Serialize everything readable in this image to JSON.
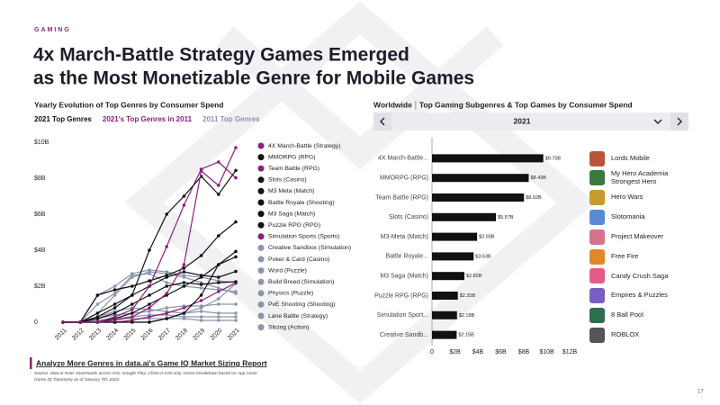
{
  "section": "GAMING",
  "title": [
    "4x March-Battle Strategy Games Emerged",
    "as the Most Monetizable Genre for Mobile Games"
  ],
  "chart_data": [
    {
      "type": "line",
      "title": "Yearly Evolution of Top Genres by Consumer Spend",
      "legend_groups": [
        {
          "name": "2021 Top Genres",
          "color": "#111111"
        },
        {
          "name": "2021's Top Genres in 2011",
          "color": "#8e1f7e"
        },
        {
          "name": "2011 Top Genres",
          "color": "#8c95ad"
        }
      ],
      "categories": [
        "2011",
        "2012",
        "2013",
        "2014",
        "2015",
        "2016",
        "2017",
        "2018",
        "2019",
        "2020",
        "2021"
      ],
      "ylim": [
        0,
        10
      ],
      "yticks": [
        0,
        {
          "value": 2,
          "label": "$2B"
        },
        {
          "value": 4,
          "label": "$4B"
        },
        {
          "value": 6,
          "label": "$6B"
        },
        {
          "value": 8,
          "label": "$8B"
        },
        {
          "value": 10,
          "label": "$10B"
        }
      ],
      "grid": false,
      "series": [
        {
          "name": "4X March-Battle (Strategy)",
          "color": "#8e1f7e",
          "values": [
            0,
            0,
            0,
            0.1,
            0.3,
            0.8,
            1.6,
            3.2,
            8.4,
            7.6,
            9.7
          ]
        },
        {
          "name": "MMORPG (RPG)",
          "color": "#111111",
          "values": [
            0,
            0,
            0.5,
            1,
            1.5,
            4,
            6,
            7,
            8.1,
            7.1,
            8.43
          ]
        },
        {
          "name": "Team Battle (RPG)",
          "color": "#8e1f7e",
          "values": [
            0,
            0,
            0,
            0.3,
            0.7,
            2,
            4.2,
            6.5,
            8.5,
            8.9,
            8.02
          ]
        },
        {
          "name": "Slots (Casino)",
          "color": "#111111",
          "values": [
            0,
            0,
            1.5,
            1.8,
            2,
            2.3,
            2.6,
            3,
            3.7,
            4.8,
            5.57
          ]
        },
        {
          "name": "M3 Meta (Match)",
          "color": "#111111",
          "values": [
            0,
            0,
            0,
            0.2,
            0.5,
            1,
            1.5,
            2,
            2.5,
            3.2,
            3.93
          ]
        },
        {
          "name": "Battle Royale (Shooting)",
          "color": "#111111",
          "values": [
            0,
            0,
            0,
            0,
            0,
            0,
            0.2,
            0.5,
            1.5,
            3.2,
            3.63
          ]
        },
        {
          "name": "M3 Saga (Match)",
          "color": "#111111",
          "values": [
            0,
            0,
            0.3,
            0.8,
            1.5,
            2,
            2.5,
            2.8,
            2.6,
            2.5,
            2.82
          ]
        },
        {
          "name": "Puzzle RPG (RPG)",
          "color": "#111111",
          "values": [
            0,
            0,
            0.2,
            0.5,
            1,
            1.5,
            2,
            2.2,
            2.1,
            2.2,
            2.25
          ]
        },
        {
          "name": "Simulation Sports (Sports)",
          "color": "#8e1f7e",
          "values": [
            0,
            0,
            0,
            0,
            0.1,
            0.3,
            0.5,
            0.8,
            1.2,
            1.7,
            2.18
          ]
        },
        {
          "name": "Creative Sandbox (Simulation)",
          "color": "#8c95ad",
          "values": [
            0,
            0,
            0,
            0,
            0,
            0,
            0.2,
            0.5,
            0.8,
            1.3,
            2.15
          ]
        },
        {
          "name": "Poker & Card (Casino)",
          "color": "#8c95ad",
          "values": [
            0,
            0,
            1.5,
            2,
            2.7,
            2.9,
            2.8,
            2.6,
            2.5,
            2.3,
            2.2
          ]
        },
        {
          "name": "Word (Puzzle)",
          "color": "#8c95ad",
          "values": [
            0,
            0,
            1,
            1.6,
            2.6,
            2.7,
            2.2,
            2,
            1.9,
            1.8,
            1.7
          ]
        },
        {
          "name": "Build Breed (Simulation)",
          "color": "#8c95ad",
          "values": [
            0,
            0,
            0.5,
            1.5,
            2.5,
            2.8,
            2.7,
            2.5,
            2.2,
            1.9,
            1.6
          ]
        },
        {
          "name": "Physics (Puzzle)",
          "color": "#8c95ad",
          "values": [
            0,
            0,
            0.3,
            0.6,
            0.8,
            0.7,
            0.6,
            0.5,
            0.6,
            0.5,
            0.5
          ]
        },
        {
          "name": "PvE Shooting (Shooting)",
          "color": "#8c95ad",
          "values": [
            0,
            0,
            0.2,
            0.4,
            0.5,
            0.6,
            0.8,
            0.9,
            0.9,
            1,
            1
          ]
        },
        {
          "name": "Lane Battle (Strategy)",
          "color": "#8c95ad",
          "values": [
            0,
            0,
            0.1,
            0.2,
            0.3,
            0.4,
            0.4,
            0.3,
            0.3,
            0.3,
            0.3
          ]
        },
        {
          "name": "Slicing (Action)",
          "color": "#8c95ad",
          "values": [
            0,
            0,
            0.1,
            0.2,
            0.2,
            0.2,
            0.2,
            0.2,
            0.1,
            0.1,
            0.1
          ]
        }
      ]
    },
    {
      "type": "bar",
      "region": "Worldwide",
      "title": "Top Gaming Subgenres & Top Games by Consumer Spend",
      "selector": "2021",
      "orientation": "horizontal",
      "color": "#111111",
      "categories": [
        "4X March-Battle...",
        "MMORPG (RPG)",
        "Team Battle (RPG)",
        "Slots (Casino)",
        "M3-Meta (Match)",
        "Battle Royale...",
        "M3 Saga (Match)",
        "Puzzle RPG (RPG)",
        "Simulation Sport...",
        "Creative Sandb..."
      ],
      "values": [
        9.7,
        8.43,
        8.02,
        5.57,
        3.93,
        3.63,
        2.82,
        2.25,
        2.18,
        2.15
      ],
      "value_labels": [
        "$9.70B",
        "$8.43B",
        "$8.02B",
        "$5.57B",
        "$3.93B",
        "$3.63B",
        "$2.82B",
        "$2.25B",
        "$2.18B",
        "$2.15B"
      ],
      "xlim": [
        0,
        12
      ],
      "xticks": [
        0,
        {
          "value": 2,
          "label": "$2B"
        },
        {
          "value": 4,
          "label": "$4B"
        },
        {
          "value": 6,
          "label": "$6B"
        },
        {
          "value": 8,
          "label": "$8B"
        },
        {
          "value": 10,
          "label": "$10B"
        },
        {
          "value": 12,
          "label": "$12B"
        }
      ]
    }
  ],
  "top_games": [
    "Lords Mobile",
    "My Hero Academia Strongest Hero",
    "Hero Wars",
    "Slotomania",
    "Project Makeover",
    "Free Fire",
    "Candy Crush Saga",
    "Empires & Puzzles",
    "8 Ball Pool",
    "ROBLOX"
  ],
  "link": "Analyze More Genres in data.ai's Game IQ Market Sizing Report",
  "source": "Source: data.ai Note: Downloads across iOS, Google Play; China is iOS only. Genre breakdown based on App Annie Game IQ Taxonomy as of January 7th, 2022.",
  "page_number": "17"
}
